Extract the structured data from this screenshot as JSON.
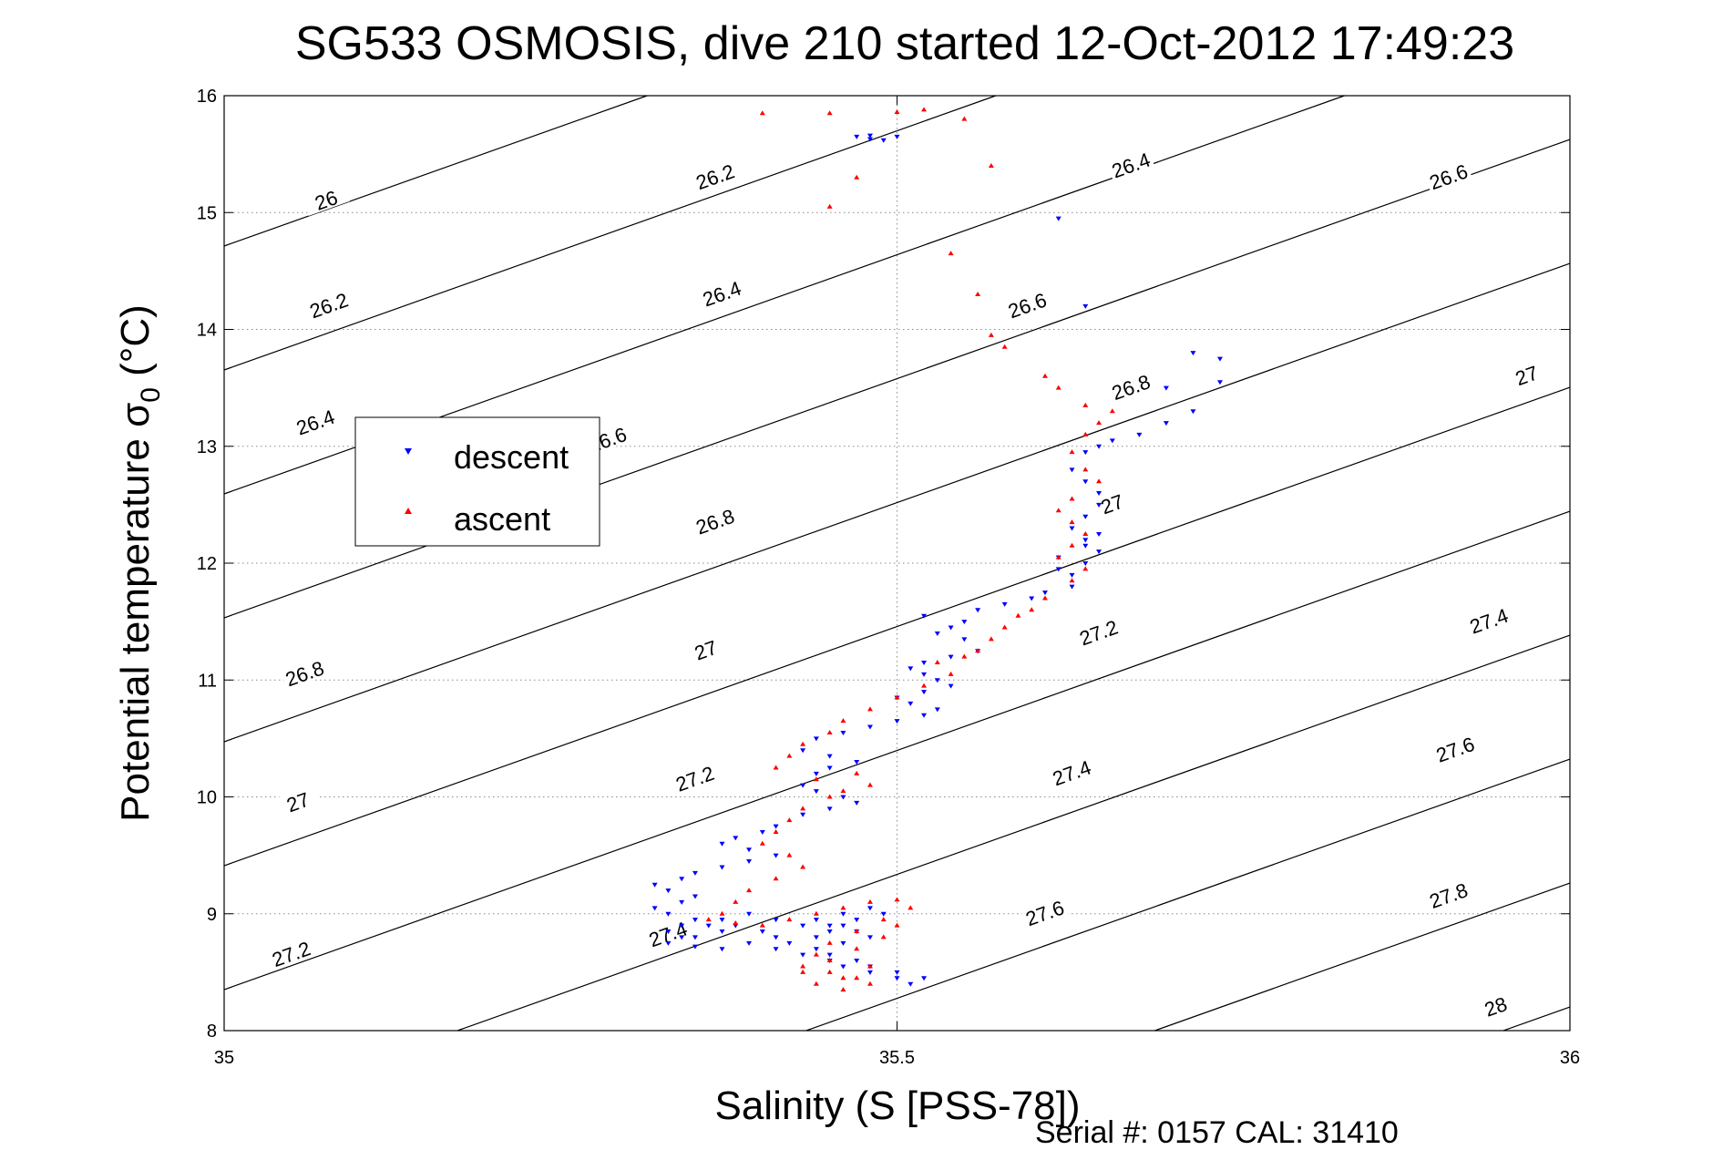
{
  "chart_data": {
    "type": "scatter",
    "title": "SG533 OSMOSIS, dive 210 started 12-Oct-2012 17:49:23",
    "xlabel": "Salinity (S [PSS-78])",
    "ylabel_prefix": "Potential temperature σ",
    "ylabel_subscript": "0",
    "ylabel_suffix": " (°C)",
    "serial_text": "Serial #: 0157  CAL: 31410",
    "xlim": [
      35,
      36
    ],
    "ylim": [
      8,
      16
    ],
    "xticks": [
      35,
      35.5,
      36
    ],
    "xtick_labels": [
      "35",
      "35.5",
      "36"
    ],
    "yticks": [
      8,
      9,
      10,
      11,
      12,
      13,
      14,
      15,
      16
    ],
    "ytick_labels": [
      "8",
      "9",
      "10",
      "11",
      "12",
      "13",
      "14",
      "15",
      "16"
    ],
    "grid": true,
    "legend": {
      "placement": "left-center",
      "entries": [
        {
          "label": "descent",
          "color": "#0000ff",
          "marker": "triangle-down"
        },
        {
          "label": "ascent",
          "color": "#ff0000",
          "marker": "triangle-up"
        }
      ]
    },
    "density_contours": {
      "levels": [
        "26",
        "26.2",
        "26.4",
        "26.6",
        "26.8",
        "27",
        "27.2",
        "27.4",
        "27.6",
        "27.8",
        "28"
      ],
      "level_values": [
        26.0,
        26.2,
        26.4,
        26.6,
        26.8,
        27.0,
        27.2,
        27.4,
        27.6,
        27.8,
        28.0
      ],
      "label_positions": [
        {
          "level": "26",
          "s": 35.076,
          "t": 15.1
        },
        {
          "level": "26.2",
          "s": 35.365,
          "t": 15.3
        },
        {
          "level": "26.4",
          "s": 35.674,
          "t": 15.4
        },
        {
          "level": "26.6",
          "s": 35.91,
          "t": 15.3
        },
        {
          "level": "26.2",
          "s": 35.078,
          "t": 14.2
        },
        {
          "level": "26.4",
          "s": 35.37,
          "t": 14.3
        },
        {
          "level": "26.6",
          "s": 35.597,
          "t": 14.2
        },
        {
          "level": "26.8",
          "s": 35.674,
          "t": 13.5
        },
        {
          "level": "27",
          "s": 35.968,
          "t": 13.6
        },
        {
          "level": "26.4",
          "s": 35.068,
          "t": 13.2
        },
        {
          "level": "26.6",
          "s": 35.285,
          "t": 13.05
        },
        {
          "level": "26.8",
          "s": 35.365,
          "t": 12.35
        },
        {
          "level": "27",
          "s": 35.66,
          "t": 12.5
        },
        {
          "level": "27.2",
          "s": 35.65,
          "t": 11.4
        },
        {
          "level": "27.4",
          "s": 35.94,
          "t": 11.5
        },
        {
          "level": "26.8",
          "s": 35.06,
          "t": 11.05
        },
        {
          "level": "27",
          "s": 35.358,
          "t": 11.25
        },
        {
          "level": "27.2",
          "s": 35.35,
          "t": 10.15
        },
        {
          "level": "27.4",
          "s": 35.63,
          "t": 10.2
        },
        {
          "level": "27.6",
          "s": 35.915,
          "t": 10.4
        },
        {
          "level": "27",
          "s": 35.055,
          "t": 9.95
        },
        {
          "level": "27.2",
          "s": 35.05,
          "t": 8.65
        },
        {
          "level": "27.4",
          "s": 35.33,
          "t": 8.82
        },
        {
          "level": "27.6",
          "s": 35.61,
          "t": 9.0
        },
        {
          "level": "27.8",
          "s": 35.91,
          "t": 9.15
        },
        {
          "level": "28",
          "s": 35.945,
          "t": 8.2
        }
      ]
    },
    "series": [
      {
        "name": "descent",
        "color": "#0000ff",
        "marker": "triangle-down",
        "x": [
          35.47,
          35.48,
          35.49,
          35.5,
          35.48,
          35.62,
          35.64,
          35.72,
          35.7,
          35.74,
          35.74,
          35.72,
          35.7,
          35.68,
          35.66,
          35.65,
          35.64,
          35.63,
          35.64,
          35.65,
          35.65,
          35.64,
          35.63,
          35.64,
          35.65,
          35.64,
          35.62,
          35.62,
          35.63,
          35.64,
          35.65,
          35.63,
          35.61,
          35.6,
          35.58,
          35.56,
          35.55,
          35.54,
          35.52,
          35.53,
          35.55,
          35.56,
          35.54,
          35.52,
          35.51,
          35.52,
          35.53,
          35.54,
          35.52,
          35.5,
          35.51,
          35.53,
          35.52,
          35.5,
          35.48,
          35.46,
          35.44,
          35.43,
          35.45,
          35.47,
          35.45,
          35.44,
          35.43,
          35.44,
          35.46,
          35.47,
          35.45,
          35.43,
          35.41,
          35.4,
          35.38,
          35.37,
          35.39,
          35.41,
          35.39,
          35.37,
          35.35,
          35.34,
          35.32,
          35.33,
          35.35,
          35.34,
          35.32,
          35.33,
          35.35,
          35.34,
          35.33,
          35.35,
          35.37,
          35.36,
          35.34,
          35.33,
          35.35,
          35.37,
          35.39,
          35.41,
          35.4,
          35.38,
          35.37,
          35.39,
          35.41,
          35.43,
          35.45,
          35.44,
          35.42,
          35.41,
          35.43,
          35.45,
          35.46,
          35.48,
          35.5,
          35.51,
          35.52,
          35.5,
          35.48,
          35.47,
          35.45,
          35.44,
          35.46,
          35.48,
          35.47,
          35.45,
          35.44,
          35.46,
          35.48,
          35.49,
          35.47,
          35.46
        ],
        "y": [
          15.65,
          15.66,
          15.62,
          15.65,
          15.63,
          14.95,
          14.2,
          13.8,
          13.5,
          13.75,
          13.55,
          13.3,
          13.2,
          13.1,
          13.05,
          13.0,
          12.95,
          12.8,
          12.7,
          12.6,
          12.5,
          12.4,
          12.3,
          12.2,
          12.25,
          12.15,
          12.05,
          11.95,
          11.9,
          12.0,
          12.1,
          11.8,
          11.75,
          11.7,
          11.65,
          11.6,
          11.5,
          11.45,
          11.55,
          11.4,
          11.35,
          11.25,
          11.2,
          11.15,
          11.1,
          11.05,
          11.0,
          10.95,
          10.9,
          10.85,
          10.8,
          10.75,
          10.7,
          10.65,
          10.6,
          10.55,
          10.5,
          10.4,
          10.35,
          10.3,
          10.25,
          10.2,
          10.1,
          10.05,
          10.0,
          9.95,
          9.9,
          9.85,
          9.75,
          9.7,
          9.65,
          9.6,
          9.55,
          9.5,
          9.45,
          9.4,
          9.35,
          9.3,
          9.25,
          9.2,
          9.15,
          9.1,
          9.05,
          9.0,
          8.95,
          8.9,
          8.85,
          8.8,
          8.85,
          8.9,
          8.8,
          8.75,
          8.72,
          8.7,
          8.75,
          8.8,
          8.85,
          8.9,
          8.95,
          9.0,
          8.95,
          8.9,
          8.85,
          8.8,
          8.75,
          8.7,
          8.65,
          8.6,
          8.55,
          8.5,
          8.45,
          8.4,
          8.45,
          8.5,
          8.55,
          8.6,
          8.65,
          8.7,
          8.75,
          8.8,
          8.85,
          8.9,
          8.95,
          9.0,
          9.05,
          9.0,
          8.95,
          8.9
        ]
      },
      {
        "name": "ascent",
        "color": "#ff0000",
        "marker": "triangle-up",
        "x": [
          35.4,
          35.45,
          35.5,
          35.52,
          35.55,
          35.57,
          35.45,
          35.47,
          35.54,
          35.56,
          35.57,
          35.58,
          35.61,
          35.62,
          35.64,
          35.66,
          35.65,
          35.64,
          35.63,
          35.64,
          35.65,
          35.63,
          35.62,
          35.63,
          35.64,
          35.63,
          35.62,
          35.64,
          35.63,
          35.61,
          35.6,
          35.59,
          35.58,
          35.57,
          35.56,
          35.55,
          35.53,
          35.54,
          35.52,
          35.5,
          35.48,
          35.46,
          35.45,
          35.43,
          35.42,
          35.41,
          35.44,
          35.46,
          35.48,
          35.47,
          35.45,
          35.43,
          35.42,
          35.41,
          35.4,
          35.42,
          35.43,
          35.41,
          35.39,
          35.38,
          35.37,
          35.36,
          35.38,
          35.4,
          35.42,
          35.44,
          35.46,
          35.48,
          35.5,
          35.51,
          35.49,
          35.47,
          35.45,
          35.44,
          35.43,
          35.45,
          35.47,
          35.48,
          35.46,
          35.44,
          35.43,
          35.45,
          35.47,
          35.49,
          35.5,
          35.48,
          35.46
        ],
        "y": [
          15.85,
          15.85,
          15.86,
          15.88,
          15.8,
          15.4,
          15.05,
          15.3,
          14.65,
          14.3,
          13.95,
          13.85,
          13.6,
          13.5,
          13.35,
          13.3,
          13.2,
          13.1,
          12.95,
          12.8,
          12.7,
          12.55,
          12.45,
          12.35,
          12.25,
          12.15,
          12.05,
          11.95,
          11.85,
          11.7,
          11.6,
          11.55,
          11.45,
          11.35,
          11.25,
          11.2,
          11.15,
          11.05,
          10.95,
          10.85,
          10.75,
          10.65,
          10.55,
          10.45,
          10.35,
          10.25,
          10.15,
          10.05,
          10.1,
          10.2,
          10.0,
          9.9,
          9.8,
          9.7,
          9.6,
          9.5,
          9.4,
          9.3,
          9.2,
          9.1,
          9.0,
          8.95,
          8.92,
          8.9,
          8.95,
          9.0,
          9.05,
          9.1,
          9.12,
          9.05,
          8.95,
          8.85,
          8.75,
          8.65,
          8.55,
          8.5,
          8.45,
          8.4,
          8.35,
          8.4,
          8.5,
          8.6,
          8.7,
          8.8,
          8.9,
          8.55,
          8.45
        ]
      }
    ]
  }
}
